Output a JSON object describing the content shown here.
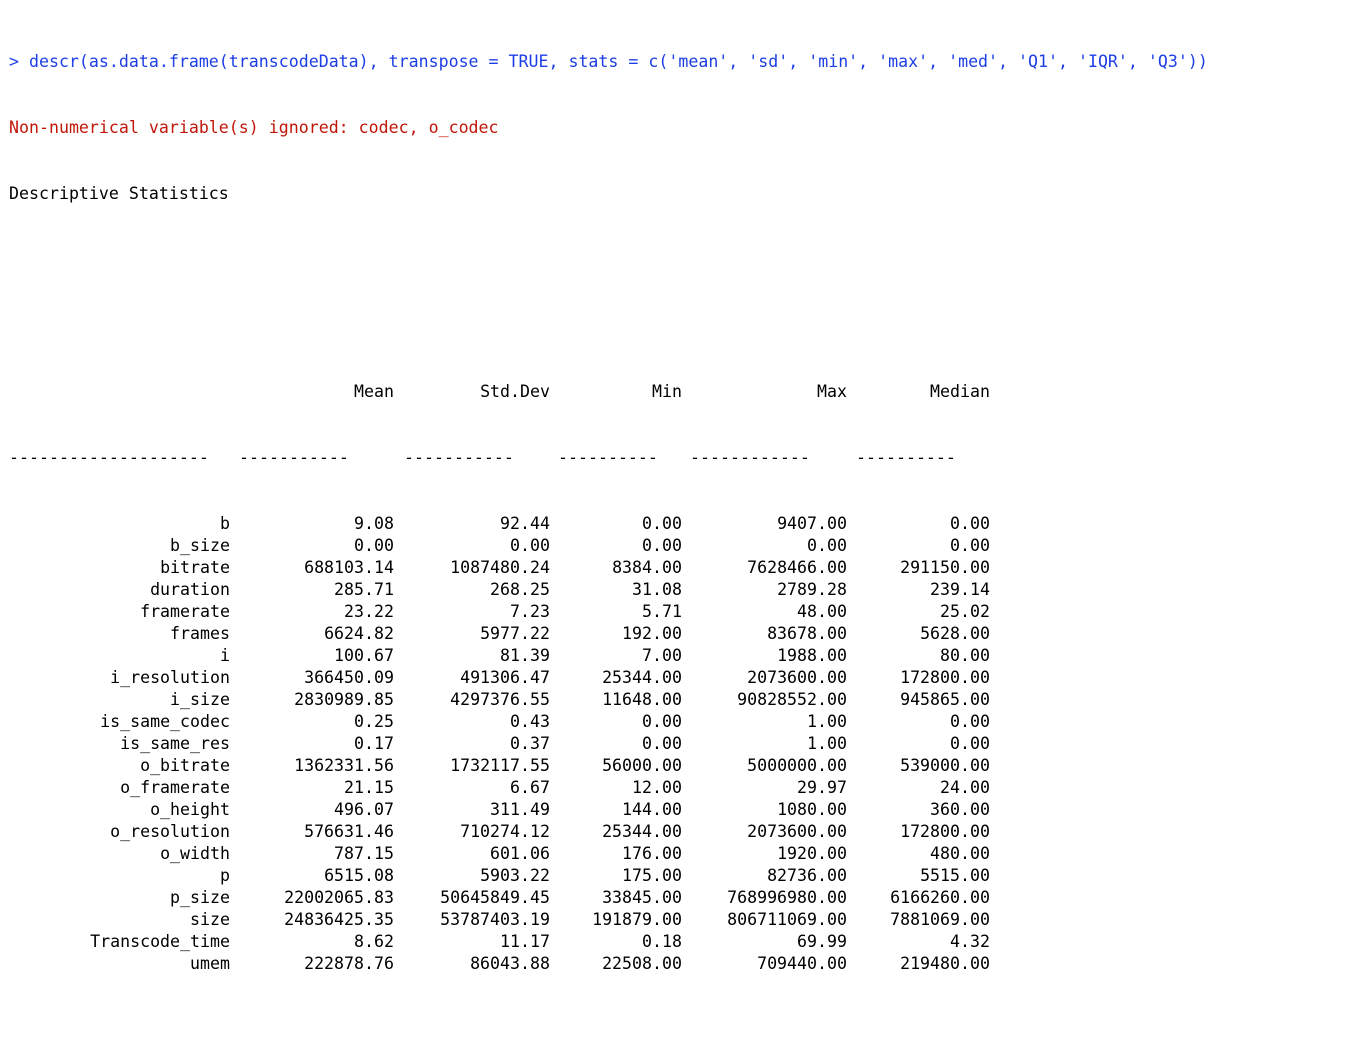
{
  "console": {
    "command": "> descr(as.data.frame(transcodeData), transpose = TRUE, stats = c('mean', 'sd', 'min', 'max', 'med', 'Q1', 'IQR', 'Q3'))",
    "warning": "Non-numerical variable(s) ignored: codec, o_codec",
    "title": "Descriptive Statistics",
    "colors": {
      "command": "#1c3ee6",
      "warning": "#c1160a",
      "text": "#000000"
    }
  },
  "table": {
    "headers": [
      "",
      "Mean",
      "Std.Dev",
      "Min",
      "Max",
      "Median"
    ],
    "separators": [
      "--------------------",
      "-----------",
      "-----------",
      "----------",
      "------------",
      "----------"
    ],
    "rows": [
      [
        "b",
        "9.08",
        "92.44",
        "0.00",
        "9407.00",
        "0.00"
      ],
      [
        "b_size",
        "0.00",
        "0.00",
        "0.00",
        "0.00",
        "0.00"
      ],
      [
        "bitrate",
        "688103.14",
        "1087480.24",
        "8384.00",
        "7628466.00",
        "291150.00"
      ],
      [
        "duration",
        "285.71",
        "268.25",
        "31.08",
        "2789.28",
        "239.14"
      ],
      [
        "framerate",
        "23.22",
        "7.23",
        "5.71",
        "48.00",
        "25.02"
      ],
      [
        "frames",
        "6624.82",
        "5977.22",
        "192.00",
        "83678.00",
        "5628.00"
      ],
      [
        "i",
        "100.67",
        "81.39",
        "7.00",
        "1988.00",
        "80.00"
      ],
      [
        "i_resolution",
        "366450.09",
        "491306.47",
        "25344.00",
        "2073600.00",
        "172800.00"
      ],
      [
        "i_size",
        "2830989.85",
        "4297376.55",
        "11648.00",
        "90828552.00",
        "945865.00"
      ],
      [
        "is_same_codec",
        "0.25",
        "0.43",
        "0.00",
        "1.00",
        "0.00"
      ],
      [
        "is_same_res",
        "0.17",
        "0.37",
        "0.00",
        "1.00",
        "0.00"
      ],
      [
        "o_bitrate",
        "1362331.56",
        "1732117.55",
        "56000.00",
        "5000000.00",
        "539000.00"
      ],
      [
        "o_framerate",
        "21.15",
        "6.67",
        "12.00",
        "29.97",
        "24.00"
      ],
      [
        "o_height",
        "496.07",
        "311.49",
        "144.00",
        "1080.00",
        "360.00"
      ],
      [
        "o_resolution",
        "576631.46",
        "710274.12",
        "25344.00",
        "2073600.00",
        "172800.00"
      ],
      [
        "o_width",
        "787.15",
        "601.06",
        "176.00",
        "1920.00",
        "480.00"
      ],
      [
        "p",
        "6515.08",
        "5903.22",
        "175.00",
        "82736.00",
        "5515.00"
      ],
      [
        "p_size",
        "22002065.83",
        "50645849.45",
        "33845.00",
        "768996980.00",
        "6166260.00"
      ],
      [
        "size",
        "24836425.35",
        "53787403.19",
        "191879.00",
        "806711069.00",
        "7881069.00"
      ],
      [
        "Transcode_time",
        "8.62",
        "11.17",
        "0.18",
        "69.99",
        "4.32"
      ],
      [
        "umem",
        "222878.76",
        "86043.88",
        "22508.00",
        "709440.00",
        "219480.00"
      ]
    ]
  }
}
